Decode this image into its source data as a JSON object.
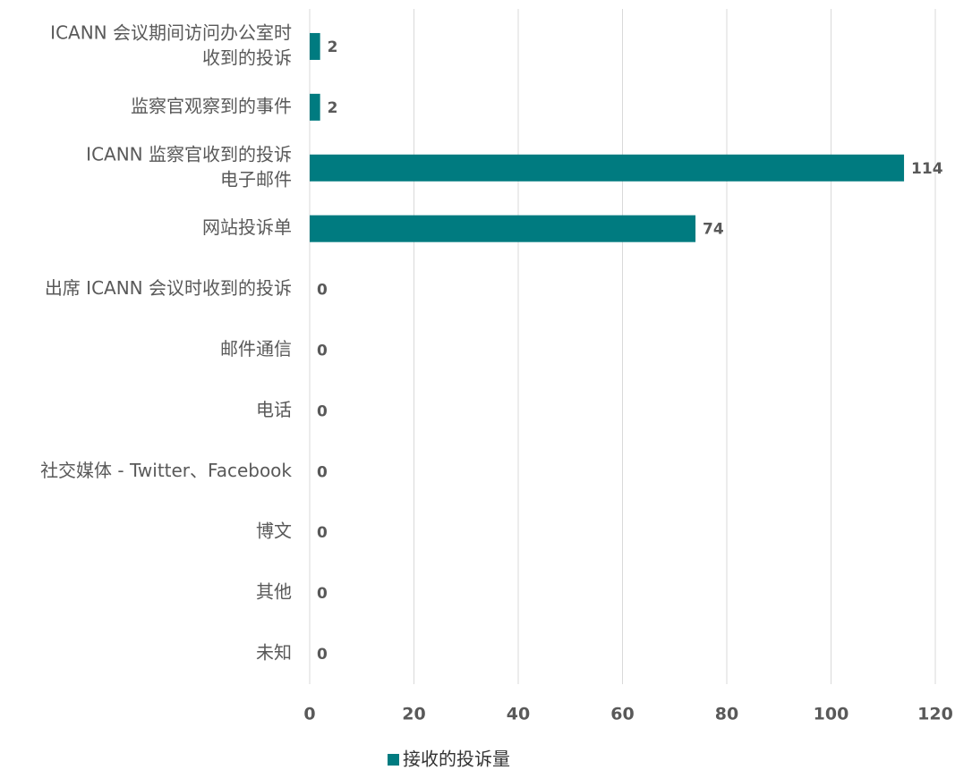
{
  "chart_data": {
    "type": "hbar",
    "categories": [
      [
        "ICANN 会议期间访问办公室时",
        "收到的投诉"
      ],
      "监察官观察到的事件",
      [
        "ICANN 监察官收到的投诉",
        "电子邮件"
      ],
      "网站投诉单",
      "出席 ICANN 会议时收到的投诉",
      "邮件通信",
      "电话",
      "社交媒体 - Twitter、Facebook",
      "博文",
      "其他",
      "未知"
    ],
    "series": [
      {
        "name": "接收的投诉量",
        "color": "#007b80",
        "values": [
          2,
          2,
          114,
          74,
          0,
          0,
          0,
          0,
          0,
          0,
          0
        ]
      }
    ],
    "xlim": [
      0,
      120
    ],
    "xticks": [
      0,
      20,
      40,
      60,
      80,
      100,
      120
    ],
    "grid": true,
    "legend": "bottom"
  }
}
